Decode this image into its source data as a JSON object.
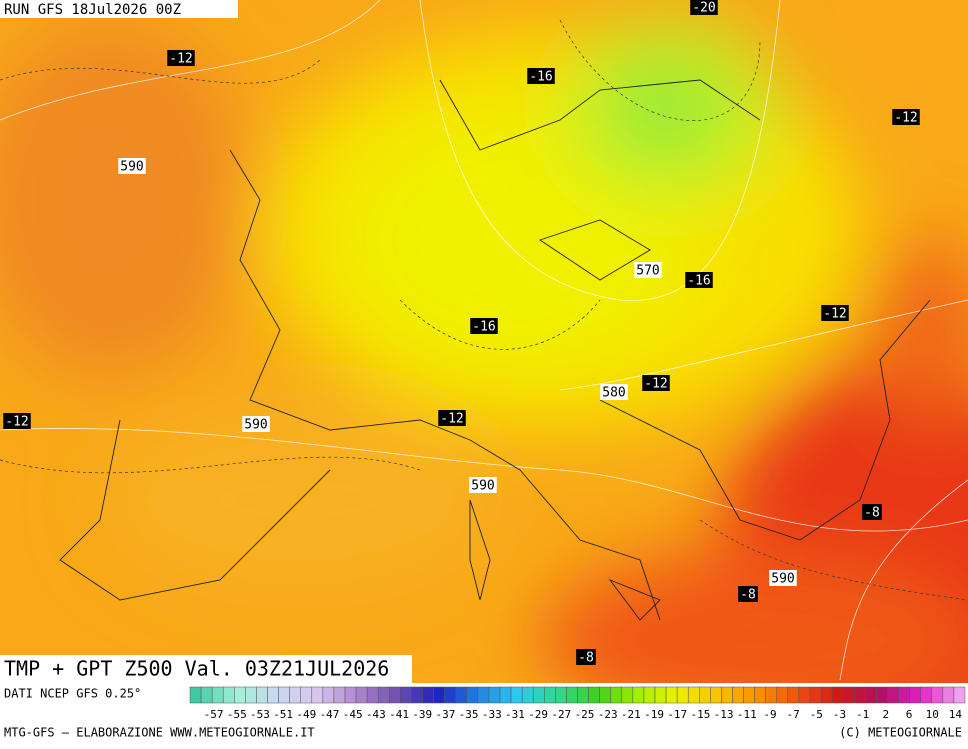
{
  "header": {
    "run": "RUN GFS 18Jul2026 00Z",
    "product": "TMP + GPT Z500 Val. 03Z21JUL2026"
  },
  "temperature_labels": [
    "-20",
    "-12",
    "-16",
    "-12",
    "-16",
    "-12",
    "-16",
    "-12",
    "-12",
    "-12",
    "-8",
    "-8",
    "-8"
  ],
  "height_labels": [
    "590",
    "570",
    "580",
    "590",
    "590",
    "590"
  ],
  "colorbar": {
    "ticks": [
      -57,
      -55,
      -53,
      -51,
      -49,
      -47,
      -45,
      -43,
      -41,
      -39,
      -37,
      -35,
      -33,
      -31,
      -29,
      -27,
      -25,
      -23,
      -21,
      -19,
      -17,
      -15,
      -13,
      -11,
      -9,
      -7,
      -5,
      -3,
      -1,
      2,
      6,
      10,
      14
    ],
    "colors": [
      "#40c8a0",
      "#a0f0d8",
      "#c8d8f0",
      "#d8c8f0",
      "#b088d0",
      "#7050b0",
      "#2020c0",
      "#2080e0",
      "#30c8f0",
      "#30d890",
      "#40d020",
      "#a0f000",
      "#f0f000",
      "#f8c000",
      "#f89000",
      "#f05010",
      "#d01818",
      "#b01060",
      "#e020c0",
      "#f0a0f0"
    ]
  },
  "footer": {
    "source": "DATI NCEP GFS 0.25°",
    "credit": "MTG-GFS – ELABORAZIONE WWW.METEOGIORNALE.IT",
    "copyright": "(C) METEOGIORNALE"
  }
}
